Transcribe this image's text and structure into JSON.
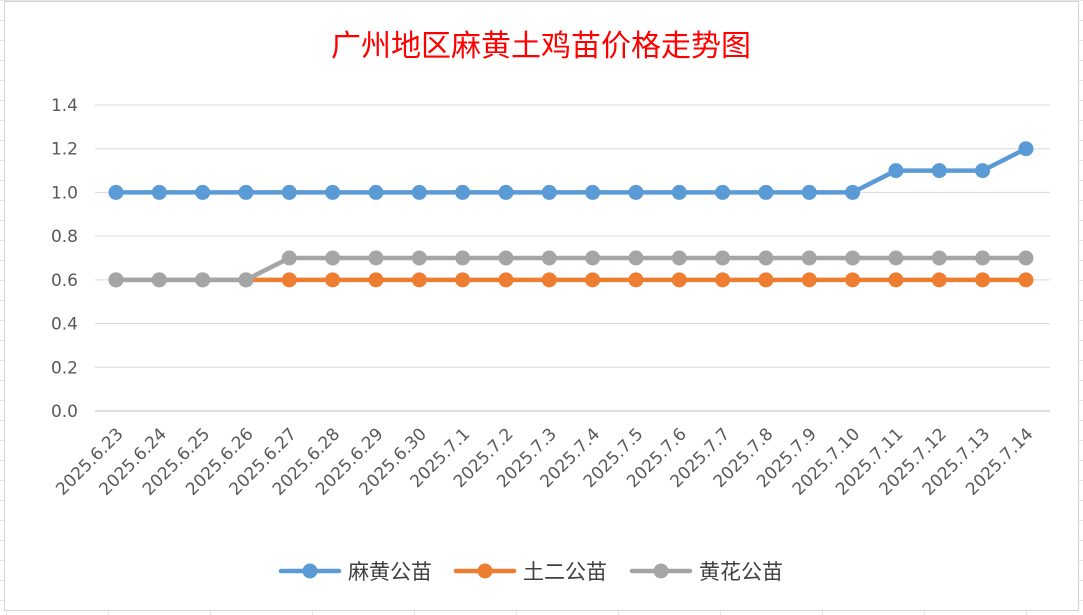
{
  "chart_data": {
    "type": "line",
    "title": "广州地区麻黄土鸡苗价格走势图",
    "xlabel": "",
    "ylabel": "",
    "categories": [
      "2025.6.23",
      "2025.6.24",
      "2025.6.25",
      "2025.6.26",
      "2025.6.27",
      "2025.6.28",
      "2025.6.29",
      "2025.6.30",
      "2025.7.1",
      "2025.7.2",
      "2025.7.3",
      "2025.7.4",
      "2025.7.5",
      "2025.7.6",
      "2025.7.7",
      "2025.7.8",
      "2025.7.9",
      "2025.7.10",
      "2025.7.11",
      "2025.7.12",
      "2025.7.13",
      "2025.7.14"
    ],
    "y_ticks": [
      "0.0",
      "0.2",
      "0.4",
      "0.6",
      "0.8",
      "1.0",
      "1.2",
      "1.4"
    ],
    "ylim": [
      0,
      1.4
    ],
    "grid": true,
    "legend_position": "bottom",
    "series": [
      {
        "name": "麻黄公苗",
        "color": "#5b9bd5",
        "values": [
          1.0,
          1.0,
          1.0,
          1.0,
          1.0,
          1.0,
          1.0,
          1.0,
          1.0,
          1.0,
          1.0,
          1.0,
          1.0,
          1.0,
          1.0,
          1.0,
          1.0,
          1.0,
          1.1,
          1.1,
          1.1,
          1.2
        ]
      },
      {
        "name": "土二公苗",
        "color": "#ed7d31",
        "values": [
          0.6,
          0.6,
          0.6,
          0.6,
          0.6,
          0.6,
          0.6,
          0.6,
          0.6,
          0.6,
          0.6,
          0.6,
          0.6,
          0.6,
          0.6,
          0.6,
          0.6,
          0.6,
          0.6,
          0.6,
          0.6,
          0.6
        ]
      },
      {
        "name": "黄花公苗",
        "color": "#a5a5a5",
        "values": [
          0.6,
          0.6,
          0.6,
          0.6,
          0.7,
          0.7,
          0.7,
          0.7,
          0.7,
          0.7,
          0.7,
          0.7,
          0.7,
          0.7,
          0.7,
          0.7,
          0.7,
          0.7,
          0.7,
          0.7,
          0.7,
          0.7
        ]
      }
    ]
  }
}
